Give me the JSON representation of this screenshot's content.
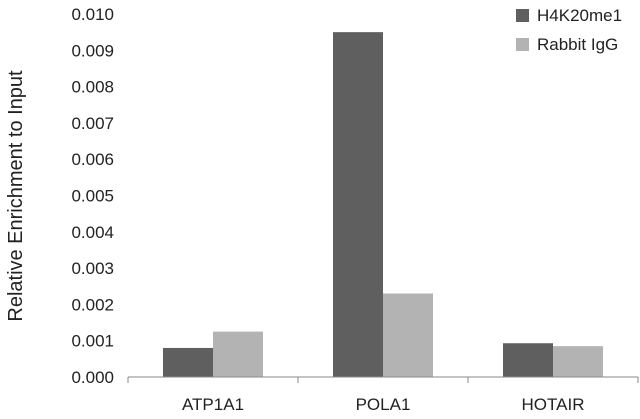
{
  "chart_data": {
    "type": "bar",
    "title": "",
    "xlabel": "",
    "ylabel": "Relative Enrichment to Input",
    "categories": [
      "ATP1A1",
      "POLA1",
      "HOTAIR"
    ],
    "series": [
      {
        "name": "H4K20me1",
        "values": [
          0.0008,
          0.0095,
          0.00093
        ],
        "color": "#5f5f5f"
      },
      {
        "name": "Rabbit IgG",
        "values": [
          0.00125,
          0.0023,
          0.00085
        ],
        "color": "#b3b3b3"
      }
    ],
    "ylim": [
      0,
      0.01
    ],
    "yticks": [
      "0.000",
      "0.001",
      "0.002",
      "0.003",
      "0.004",
      "0.005",
      "0.006",
      "0.007",
      "0.008",
      "0.009",
      "0.010"
    ],
    "grid": false,
    "legend": "top-right"
  }
}
